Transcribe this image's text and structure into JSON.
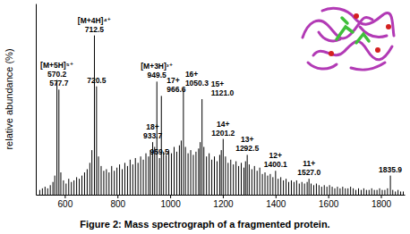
{
  "chart_data": {
    "type": "stem",
    "title": "Figure 2: Mass spectrograph of a fragmented protein.",
    "y_label": "relative abundance (%)",
    "color": "#000000",
    "xlim": [
      490,
      1890
    ],
    "xticks": [
      600,
      800,
      1000,
      1200,
      1400,
      1600,
      1800
    ],
    "ylim": [
      0,
      120
    ],
    "tick_labels": "x",
    "x": [
      505,
      515,
      525,
      535,
      545,
      555,
      562,
      570.2,
      577.7,
      585,
      595,
      605,
      615,
      625,
      635,
      645,
      655,
      665,
      675,
      685,
      695,
      703,
      712.5,
      720.5,
      728,
      738,
      748,
      758,
      768,
      778,
      788,
      798,
      808,
      818,
      828,
      838,
      848,
      858,
      868,
      878,
      888,
      898,
      908,
      918,
      925,
      933.7,
      941,
      949.5,
      959.5,
      966.6,
      975,
      985,
      995,
      1005,
      1015,
      1025,
      1035,
      1042,
      1050.3,
      1058,
      1068,
      1078,
      1088,
      1098,
      1108,
      1114,
      1121.0,
      1128,
      1138,
      1148,
      1158,
      1168,
      1178,
      1188,
      1194,
      1201.2,
      1210,
      1220,
      1230,
      1240,
      1250,
      1260,
      1270,
      1280,
      1286,
      1292.5,
      1300,
      1310,
      1320,
      1330,
      1340,
      1350,
      1360,
      1370,
      1380,
      1390,
      1400.1,
      1410,
      1420,
      1430,
      1440,
      1450,
      1460,
      1470,
      1480,
      1490,
      1500,
      1510,
      1520,
      1527.0,
      1535,
      1545,
      1555,
      1565,
      1575,
      1585,
      1595,
      1605,
      1615,
      1625,
      1635,
      1645,
      1655,
      1665,
      1675,
      1685,
      1695,
      1705,
      1715,
      1725,
      1735,
      1745,
      1755,
      1765,
      1775,
      1785,
      1795,
      1805,
      1815,
      1825,
      1835.9,
      1845,
      1855,
      1865,
      1875,
      1885
    ],
    "values": [
      3,
      4,
      5,
      4,
      6,
      8,
      12,
      72,
      66,
      14,
      9,
      7,
      10,
      8,
      9,
      11,
      10,
      12,
      14,
      16,
      20,
      28,
      100,
      68,
      24,
      18,
      15,
      16,
      14,
      18,
      15,
      17,
      19,
      16,
      20,
      18,
      22,
      19,
      23,
      20,
      24,
      22,
      26,
      24,
      28,
      33,
      30,
      71,
      23,
      62,
      27,
      25,
      28,
      26,
      30,
      27,
      31,
      34,
      66,
      30,
      26,
      28,
      25,
      27,
      29,
      33,
      60,
      30,
      24,
      26,
      22,
      24,
      21,
      25,
      28,
      35,
      24,
      20,
      22,
      19,
      21,
      18,
      20,
      17,
      21,
      25,
      19,
      16,
      18,
      15,
      17,
      13,
      14,
      12,
      13,
      11,
      15,
      10,
      11,
      9,
      10,
      8,
      9,
      8,
      9,
      7,
      8,
      7,
      8,
      10,
      7,
      6,
      7,
      6,
      5,
      6,
      5,
      6,
      5,
      4,
      5,
      4,
      5,
      4,
      4,
      5,
      4,
      3,
      4,
      3,
      4,
      3,
      3,
      4,
      3,
      3,
      4,
      3,
      3,
      4,
      12,
      3,
      2,
      3,
      2,
      2
    ],
    "annotations": [
      {
        "x": 570.2,
        "y": 72,
        "texts": [
          "[M+5H]⁵⁺",
          "570.2"
        ]
      },
      {
        "x": 577.7,
        "y": 66,
        "texts": [
          "577.7"
        ]
      },
      {
        "x": 712.5,
        "y": 100,
        "texts": [
          "[M+4H]⁴⁺",
          "712.5"
        ]
      },
      {
        "x": 720.5,
        "y": 68,
        "texts": [
          "720.5"
        ]
      },
      {
        "x": 949.5,
        "y": 71,
        "texts": [
          "[M+3H]³⁺",
          "949.5"
        ]
      },
      {
        "x": 933.7,
        "y": 33,
        "texts": [
          "18+",
          "933.7"
        ]
      },
      {
        "x": 966.6,
        "y": 62,
        "texts": [
          "17+",
          "966.6"
        ]
      },
      {
        "x": 959.5,
        "y": 23,
        "texts": [
          "959.5"
        ]
      },
      {
        "x": 1050.3,
        "y": 66,
        "texts": [
          "16+",
          "1050.3"
        ]
      },
      {
        "x": 1121.0,
        "y": 60,
        "texts": [
          "15+",
          "1121.0"
        ]
      },
      {
        "x": 1201.2,
        "y": 35,
        "texts": [
          "14+",
          "1201.2"
        ]
      },
      {
        "x": 1292.5,
        "y": 25,
        "texts": [
          "13+",
          "1292.5"
        ]
      },
      {
        "x": 1400.1,
        "y": 15,
        "texts": [
          "12+",
          "1400.1"
        ]
      },
      {
        "x": 1527.0,
        "y": 10,
        "texts": [
          "11+",
          "1527.0"
        ]
      },
      {
        "x": 1835.9,
        "y": 12,
        "texts": [
          "1835.9"
        ]
      }
    ]
  }
}
